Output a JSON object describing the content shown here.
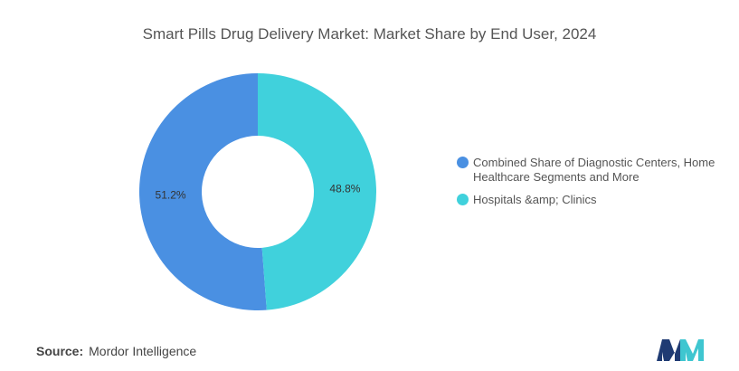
{
  "chart_data": {
    "type": "pie",
    "title": "Smart Pills Drug Delivery Market: Market Share by End User, 2024",
    "slices": [
      {
        "label": "Combined Share of Diagnostic Centers, Home Healthcare Segments and More",
        "value": 51.2,
        "value_label": "51.2%",
        "color": "#4a90e2"
      },
      {
        "label": "Hospitals &amp; Clinics",
        "value": 48.8,
        "value_label": "48.8%",
        "color": "#40d1dc"
      }
    ],
    "donut": true,
    "legend_position": "right"
  },
  "source": {
    "prefix": "Source:",
    "text": "Mordor Intelligence"
  },
  "logo": {
    "icon": "mordor-intelligence-logo",
    "colors": [
      "#1f3b73",
      "#3fc6d0"
    ]
  }
}
